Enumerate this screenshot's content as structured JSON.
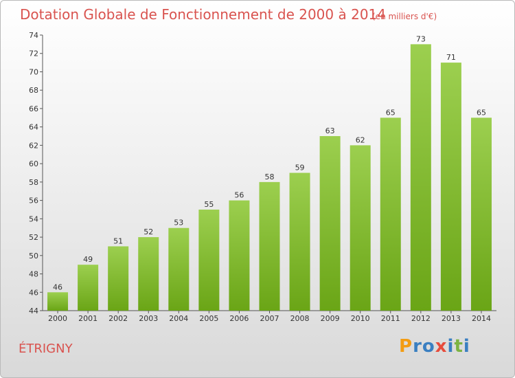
{
  "chart_data": {
    "type": "bar",
    "title": "Dotation Globale de Fonctionnement de 2000 à 2014",
    "subtitle": "(en milliers d'€)",
    "categories": [
      "2000",
      "2001",
      "2002",
      "2003",
      "2004",
      "2005",
      "2006",
      "2007",
      "2008",
      "2009",
      "2010",
      "2011",
      "2012",
      "2013",
      "2014"
    ],
    "values": [
      46,
      49,
      51,
      52,
      53,
      55,
      56,
      58,
      59,
      63,
      62,
      65,
      73,
      71,
      65
    ],
    "ylim": [
      44,
      74
    ],
    "yticks": [
      44,
      46,
      48,
      50,
      52,
      54,
      56,
      58,
      60,
      62,
      64,
      66,
      68,
      70,
      72,
      74
    ],
    "grid": false,
    "bar_color_top": "#9ccf4f",
    "bar_color_bottom": "#6aa516"
  },
  "place_name": "ÉTRIGNY",
  "logo": {
    "letters": [
      "P",
      "r",
      "o",
      "x",
      "i",
      "t",
      "i"
    ],
    "colors": [
      "#f39c12",
      "#3a7fc1",
      "#3a7fc1",
      "#e74c3c",
      "#3a7fc1",
      "#7cb342",
      "#3a7fc1"
    ]
  }
}
